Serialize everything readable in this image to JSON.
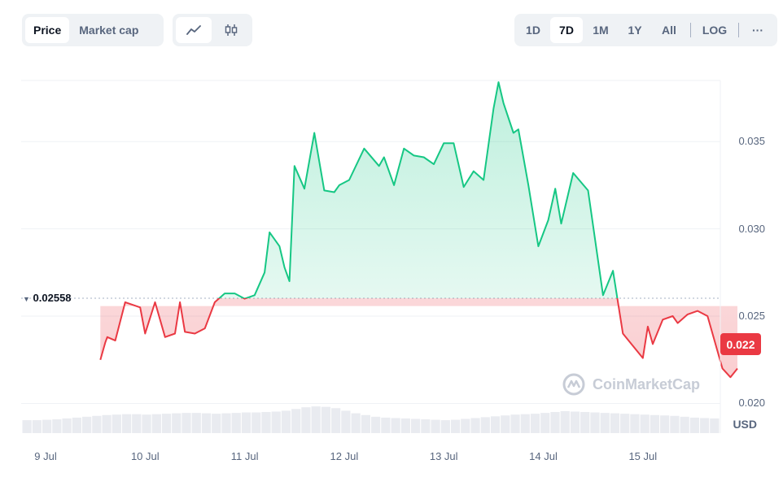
{
  "toolbar": {
    "metric_tabs": [
      {
        "label": "Price",
        "active": true
      },
      {
        "label": "Market cap",
        "active": false
      }
    ],
    "chart_modes": [
      {
        "icon": "line-chart-icon",
        "active": true
      },
      {
        "icon": "candlestick-icon",
        "active": false
      }
    ],
    "ranges": [
      {
        "label": "1D",
        "active": false
      },
      {
        "label": "7D",
        "active": true
      },
      {
        "label": "1M",
        "active": false
      },
      {
        "label": "1Y",
        "active": false
      },
      {
        "label": "All",
        "active": false
      }
    ],
    "log_label": "LOG",
    "more_label": "···"
  },
  "chart": {
    "reference_label": "0.02558",
    "current_price_label": "0.022",
    "currency": "USD",
    "watermark": "CoinMarketCap",
    "colors": {
      "up": "#16c784",
      "down": "#ea3943",
      "volume": "#dfe3ea"
    }
  },
  "chart_data": {
    "type": "area",
    "xlabel": "",
    "ylabel": "",
    "x_ticks": [
      "9 Jul",
      "10 Jul",
      "11 Jul",
      "12 Jul",
      "13 Jul",
      "14 Jul",
      "15 Jul"
    ],
    "y_ticks": [
      0.02,
      0.025,
      0.03,
      0.035
    ],
    "ylim": [
      0.0183,
      0.0385
    ],
    "reference_value": 0.02558,
    "current_value": 0.022,
    "x": [
      0.55,
      0.6,
      0.62,
      0.7,
      0.8,
      0.95,
      1.0,
      1.1,
      1.2,
      1.3,
      1.35,
      1.4,
      1.5,
      1.6,
      1.7,
      1.8,
      1.9,
      2.0,
      2.1,
      2.2,
      2.25,
      2.35,
      2.4,
      2.45,
      2.5,
      2.6,
      2.7,
      2.8,
      2.9,
      2.95,
      3.05,
      3.2,
      3.35,
      3.4,
      3.5,
      3.6,
      3.7,
      3.8,
      3.9,
      4.0,
      4.1,
      4.2,
      4.3,
      4.4,
      4.5,
      4.55,
      4.6,
      4.7,
      4.75,
      4.85,
      4.95,
      5.05,
      5.12,
      5.18,
      5.3,
      5.45,
      5.6,
      5.7,
      5.8,
      5.9,
      6.0,
      6.05,
      6.1,
      6.2,
      6.3,
      6.35,
      6.45,
      6.55,
      6.65,
      6.75,
      6.8,
      6.88,
      6.95
    ],
    "y": [
      0.0225,
      0.0235,
      0.0238,
      0.0236,
      0.0258,
      0.0255,
      0.024,
      0.0258,
      0.0238,
      0.024,
      0.0258,
      0.0241,
      0.024,
      0.0243,
      0.0258,
      0.0263,
      0.0263,
      0.026,
      0.0262,
      0.0275,
      0.0298,
      0.029,
      0.0278,
      0.027,
      0.0336,
      0.0323,
      0.0355,
      0.0322,
      0.0321,
      0.0325,
      0.0328,
      0.0346,
      0.0336,
      0.0341,
      0.0325,
      0.0346,
      0.0342,
      0.0341,
      0.0337,
      0.0349,
      0.0349,
      0.0324,
      0.0333,
      0.0328,
      0.0369,
      0.0384,
      0.0372,
      0.0355,
      0.0357,
      0.0325,
      0.029,
      0.0305,
      0.0323,
      0.0303,
      0.0332,
      0.0322,
      0.0262,
      0.0276,
      0.024,
      0.0233,
      0.0226,
      0.0244,
      0.0234,
      0.0248,
      0.025,
      0.0246,
      0.0251,
      0.0253,
      0.025,
      0.023,
      0.022,
      0.0215,
      0.022
    ]
  },
  "volume_data": [
    0.3,
    0.3,
    0.31,
    0.32,
    0.34,
    0.36,
    0.38,
    0.4,
    0.42,
    0.43,
    0.44,
    0.44,
    0.43,
    0.44,
    0.45,
    0.46,
    0.47,
    0.47,
    0.46,
    0.45,
    0.46,
    0.47,
    0.48,
    0.48,
    0.49,
    0.5,
    0.52,
    0.56,
    0.6,
    0.62,
    0.61,
    0.58,
    0.52,
    0.46,
    0.42,
    0.38,
    0.36,
    0.35,
    0.34,
    0.33,
    0.32,
    0.31,
    0.3,
    0.31,
    0.33,
    0.35,
    0.37,
    0.39,
    0.41,
    0.43,
    0.44,
    0.45,
    0.47,
    0.49,
    0.51,
    0.5,
    0.49,
    0.48,
    0.47,
    0.46,
    0.45,
    0.44,
    0.43,
    0.42,
    0.41,
    0.4,
    0.38,
    0.36,
    0.35,
    0.34
  ]
}
